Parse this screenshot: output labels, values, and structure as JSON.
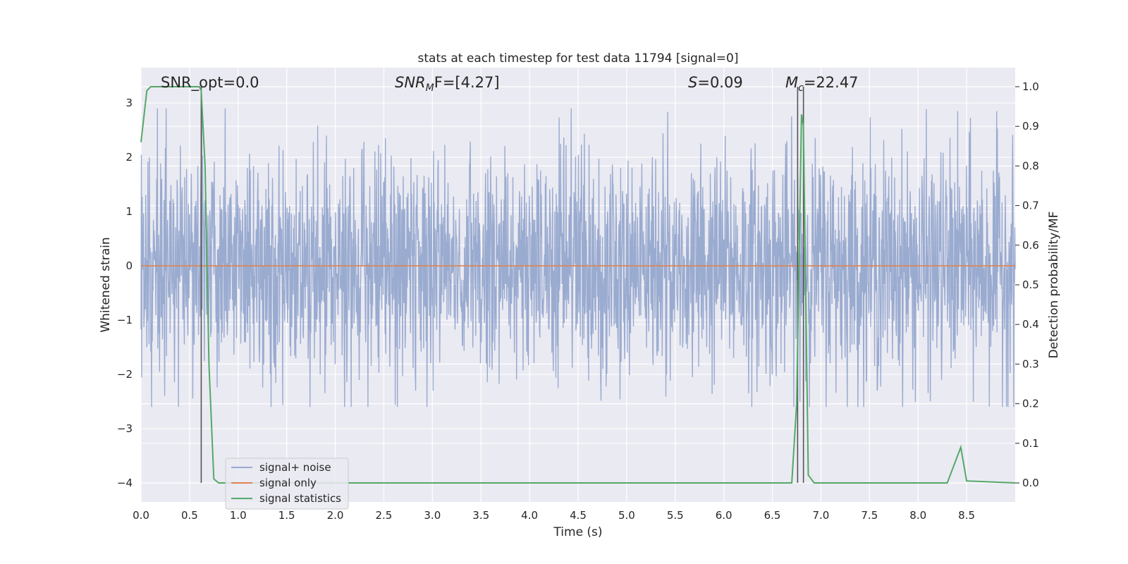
{
  "chart_data": {
    "type": "line",
    "title": "stats at each timestep for test data 11794 [signal=0]",
    "xlabel": "Time (s)",
    "ylabel": "Whitened strain",
    "ylabel_right": "Detection probability/MF",
    "xlim": [
      0,
      9.0
    ],
    "ylim": [
      -4.35,
      3.65
    ],
    "ylim_right": [
      -0.048,
      1.048
    ],
    "x_ticks": [
      0.0,
      0.5,
      1.0,
      1.5,
      2.0,
      2.5,
      3.0,
      3.5,
      4.0,
      4.5,
      5.0,
      5.5,
      6.0,
      6.5,
      7.0,
      7.5,
      8.0,
      8.5
    ],
    "x_tick_labels": [
      "0.0",
      "0.5",
      "1.0",
      "1.5",
      "2.0",
      "2.5",
      "3.0",
      "3.5",
      "4.0",
      "4.5",
      "5.0",
      "5.5",
      "6.0",
      "6.5",
      "7.0",
      "7.5",
      "8.0",
      "8.5"
    ],
    "y_ticks": [
      3,
      2,
      1,
      0,
      -1,
      -2,
      -3,
      -4
    ],
    "y_tick_labels": [
      "3",
      "2",
      "1",
      "0",
      "−1",
      "−2",
      "−3",
      "−4"
    ],
    "y_ticks_right": [
      1.0,
      0.9,
      0.8,
      0.7,
      0.6,
      0.5,
      0.4,
      0.3,
      0.2,
      0.1,
      0.0
    ],
    "y_tick_labels_right": [
      "1.0",
      "0.9",
      "0.8",
      "0.7",
      "0.6",
      "0.5",
      "0.4",
      "0.3",
      "0.2",
      "0.1",
      "0.0"
    ],
    "grid": true,
    "legend_position": "lower-left",
    "annotations": {
      "snr_opt": "SNR_opt=0.0",
      "snr_mf_base": "SNR",
      "snr_mf_sub": "M",
      "snr_mf_tail": "F=[4.27]",
      "s_var": "S",
      "s_val": "=0.09",
      "mc_var": "M",
      "mc_sub": "c",
      "mc_val": "=22.47"
    },
    "vertical_markers_x": [
      0.62,
      6.76,
      6.82
    ],
    "vertical_marker_color": "#555555",
    "series": [
      {
        "name": "signal+ noise",
        "color": "#9aabd0",
        "axis": "left",
        "description_type": "noise",
        "noise_envelope": [
          -2.6,
          2.9
        ]
      },
      {
        "name": "signal only",
        "color": "#dd8452",
        "axis": "left",
        "x": [
          0.0,
          9.0
        ],
        "y": [
          0.0,
          0.0
        ]
      },
      {
        "name": "signal statistics",
        "color": "#55a868",
        "axis": "right",
        "x": [
          0.0,
          0.06,
          0.1,
          0.6,
          0.62,
          0.66,
          0.7,
          0.75,
          0.8,
          6.7,
          6.75,
          6.8,
          6.82,
          6.87,
          6.93,
          8.0,
          8.3,
          8.44,
          8.5,
          9.0
        ],
        "y": [
          0.86,
          0.99,
          1.0,
          1.0,
          0.99,
          0.8,
          0.3,
          0.01,
          0.0,
          0.0,
          0.2,
          0.93,
          0.9,
          0.02,
          0.0,
          0.0,
          0.0,
          0.09,
          0.005,
          0.0
        ]
      }
    ]
  }
}
